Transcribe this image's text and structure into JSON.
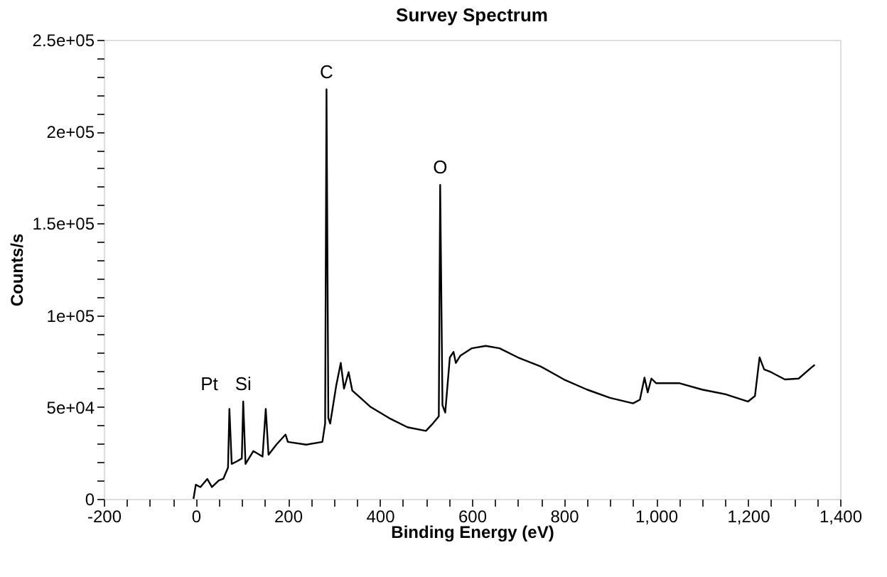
{
  "chart_data": {
    "type": "line",
    "title": "Survey Spectrum",
    "xlabel": "Binding Energy (eV)",
    "ylabel": "Counts/s",
    "x": [
      -5,
      0,
      10,
      25,
      35,
      50,
      60,
      70,
      73,
      78,
      90,
      100,
      103,
      108,
      125,
      145,
      152,
      158,
      175,
      195,
      200,
      240,
      275,
      281,
      284,
      288,
      292,
      305,
      315,
      322,
      332,
      340,
      380,
      420,
      460,
      500,
      515,
      525,
      528,
      531,
      536,
      542,
      552,
      560,
      565,
      575,
      600,
      630,
      660,
      700,
      750,
      800,
      850,
      900,
      950,
      965,
      975,
      982,
      990,
      1000,
      1050,
      1100,
      1150,
      1200,
      1215,
      1225,
      1235,
      1250,
      1280,
      1310,
      1340,
      1345
    ],
    "series": [
      {
        "color": "#000000",
        "values": [
          0,
          7700,
          6400,
          10800,
          6400,
          10000,
          11000,
          17000,
          49000,
          19000,
          20500,
          22000,
          53000,
          19000,
          26000,
          23000,
          49000,
          24000,
          29500,
          35000,
          31000,
          29500,
          31000,
          41000,
          223000,
          44000,
          41000,
          61500,
          74000,
          60000,
          69000,
          59000,
          50000,
          44000,
          39000,
          37000,
          41000,
          44000,
          45000,
          171000,
          51000,
          47000,
          77000,
          80000,
          74000,
          78000,
          82000,
          83300,
          82000,
          77000,
          72000,
          65000,
          59500,
          55000,
          52000,
          54000,
          66000,
          58000,
          65500,
          63000,
          63000,
          59500,
          57000,
          53000,
          56000,
          77000,
          70500,
          69000,
          65000,
          65500,
          72000,
          73000
        ]
      }
    ],
    "xlim": [
      -200,
      1400
    ],
    "xticks": [
      -200,
      {
        "value": -150,
        "label": null
      },
      {
        "value": -100,
        "label": null
      },
      {
        "value": -50,
        "label": null
      },
      0,
      {
        "value": 50,
        "label": null
      },
      {
        "value": 100,
        "label": null
      },
      {
        "value": 150,
        "label": null
      },
      200,
      {
        "value": 250,
        "label": null
      },
      {
        "value": 300,
        "label": null
      },
      {
        "value": 350,
        "label": null
      },
      400,
      {
        "value": 450,
        "label": null
      },
      {
        "value": 500,
        "label": null
      },
      {
        "value": 550,
        "label": null
      },
      600,
      {
        "value": 650,
        "label": null
      },
      {
        "value": 700,
        "label": null
      },
      {
        "value": 750,
        "label": null
      },
      800,
      {
        "value": 850,
        "label": null
      },
      {
        "value": 900,
        "label": null
      },
      {
        "value": 950,
        "label": null
      },
      {
        "value": 1000,
        "label": "1,000"
      },
      {
        "value": 1050,
        "label": null
      },
      {
        "value": 1100,
        "label": null
      },
      {
        "value": 1150,
        "label": null
      },
      {
        "value": 1200,
        "label": "1,200"
      },
      {
        "value": 1250,
        "label": null
      },
      {
        "value": 1300,
        "label": null
      },
      {
        "value": 1350,
        "label": null
      },
      {
        "value": 1400,
        "label": "1,400"
      }
    ],
    "ylim": [
      0,
      250000
    ],
    "yticks": [
      0,
      {
        "value": 10000,
        "label": null
      },
      {
        "value": 20000,
        "label": null
      },
      {
        "value": 30000,
        "label": null
      },
      {
        "value": 40000,
        "label": null
      },
      {
        "value": 50000,
        "label": "5e+04"
      },
      {
        "value": 60000,
        "label": null
      },
      {
        "value": 70000,
        "label": null
      },
      {
        "value": 80000,
        "label": null
      },
      {
        "value": 90000,
        "label": null
      },
      {
        "value": 100000,
        "label": "1e+05"
      },
      {
        "value": 110000,
        "label": null
      },
      {
        "value": 120000,
        "label": null
      },
      {
        "value": 130000,
        "label": null
      },
      {
        "value": 140000,
        "label": null
      },
      {
        "value": 150000,
        "label": "1.5e+05"
      },
      {
        "value": 160000,
        "label": null
      },
      {
        "value": 170000,
        "label": null
      },
      {
        "value": 180000,
        "label": null
      },
      {
        "value": 190000,
        "label": null
      },
      {
        "value": 200000,
        "label": "2e+05"
      },
      {
        "value": 210000,
        "label": null
      },
      {
        "value": 220000,
        "label": null
      },
      {
        "value": 230000,
        "label": null
      },
      {
        "value": 240000,
        "label": null
      },
      {
        "value": 250000,
        "label": "2.5e+05"
      }
    ],
    "annotations": [
      {
        "text": "Pt",
        "x": 73,
        "y": 49000
      },
      {
        "text": "Si",
        "x": 103,
        "y": 53000
      },
      {
        "text": "C",
        "x": 284,
        "y": 223000
      },
      {
        "text": "O",
        "x": 531,
        "y": 171000
      }
    ],
    "grid": false,
    "line_style": "solid",
    "marker": "none"
  }
}
